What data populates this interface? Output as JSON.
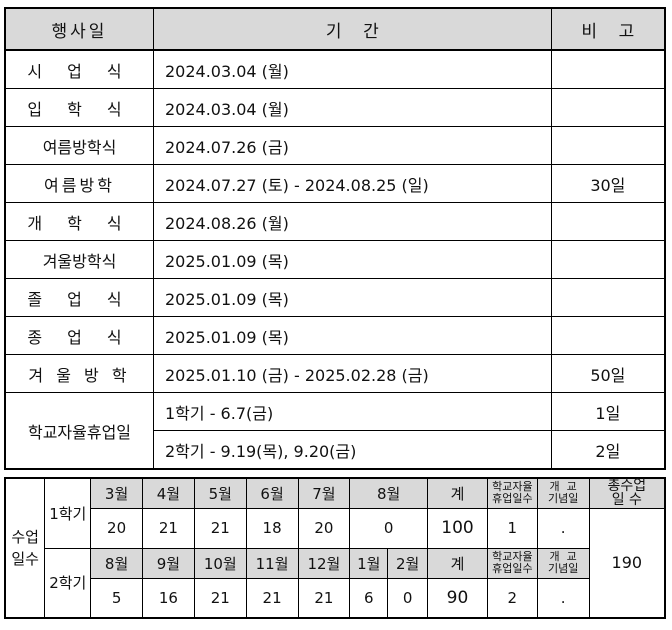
{
  "schedule": {
    "headers": {
      "event": "행사일",
      "period": "기    간",
      "note": "비    고"
    },
    "rows": [
      {
        "event": "시 업 식",
        "period": "2024.03.04 (월)",
        "note": ""
      },
      {
        "event": "입 학 식",
        "period": "2024.03.04 (월)",
        "note": ""
      },
      {
        "event": "여름방학식",
        "period": "2024.07.26 (금)",
        "note": ""
      },
      {
        "event": "여름방학",
        "period": "2024.07.27 (토) - 2024.08.25 (일)",
        "note": "30일"
      },
      {
        "event": "개 학 식",
        "period": "2024.08.26 (월)",
        "note": ""
      },
      {
        "event": "겨울방학식",
        "period": "2025.01.09 (목)",
        "note": ""
      },
      {
        "event": "졸 업 식",
        "period": "2025.01.09 (목)",
        "note": ""
      },
      {
        "event": "종 업 식",
        "period": "2025.01.09 (목)",
        "note": ""
      },
      {
        "event": "겨 울 방 학",
        "period": "2025.01.10 (금) - 2025.02.28 (금)",
        "note": "50일"
      }
    ],
    "autonomous": {
      "event": "학교자율휴업일",
      "items": [
        {
          "period": "1학기 - 6.7(금)",
          "note": "1일"
        },
        {
          "period": "2학기 - 9.19(목), 9.20(금)",
          "note": "2일"
        }
      ]
    }
  },
  "days": {
    "label": "수업\n일수",
    "sem1": {
      "label": "1학기",
      "months": [
        "3월",
        "4월",
        "5월",
        "6월",
        "7월",
        "8월"
      ],
      "values": [
        "20",
        "21",
        "21",
        "18",
        "20",
        "0"
      ],
      "total_label": "계",
      "total": "100",
      "auto_label": "학교자율\n휴업일수",
      "auto": "1",
      "found_label": "개  교\n기념일",
      "found": "."
    },
    "sem2": {
      "label": "2학기",
      "months": [
        "8월",
        "9월",
        "10월",
        "11월",
        "12월",
        "1월",
        "2월"
      ],
      "values": [
        "5",
        "16",
        "21",
        "21",
        "21",
        "6",
        "0"
      ],
      "total_label": "계",
      "total": "90",
      "auto_label": "학교자율\n휴업일수",
      "auto": "2",
      "found_label": "개  교\n기념일",
      "found": "."
    },
    "grand_label": "총수업\n일  수",
    "grand_total": "190"
  }
}
